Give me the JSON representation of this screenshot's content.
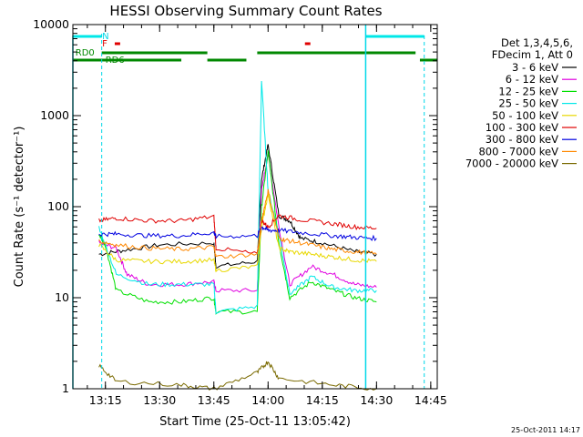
{
  "chart_data": {
    "type": "line",
    "title": "HESSI Observing Summary Count Rates",
    "xlabel": "Start Time (25-Oct-11 13:05:42)",
    "ylabel": "Count Rate (s⁻¹ detector⁻¹)",
    "yscale": "log",
    "ylim": [
      1,
      10000
    ],
    "xlim_minutes": [
      13.1,
      14.78
    ],
    "x_tick_labels": [
      "13:15",
      "13:30",
      "13:45",
      "14:00",
      "14:15",
      "14:30",
      "14:45"
    ],
    "y_tick_labels": [
      "1",
      "10",
      "100",
      "1000",
      "10000"
    ],
    "legend_header": [
      "Det 1,3,4,5,6,",
      "FDecim 1, Att 0"
    ],
    "legend_placement": "right",
    "timestamp": "25-Oct-2011 14:17",
    "annotations": [
      {
        "text": "N",
        "color": "#00d8e8"
      },
      {
        "text": "F",
        "color": "#e00000"
      },
      {
        "text": "RD0",
        "color": "#008800"
      },
      {
        "text": "RD6",
        "color": "#008800"
      }
    ],
    "series": [
      {
        "name": "3 - 6 keV",
        "color": "#000000",
        "points": [
          [
            13.22,
            30
          ],
          [
            13.33,
            33
          ],
          [
            13.5,
            38
          ],
          [
            13.75,
            40
          ],
          [
            13.76,
            22
          ],
          [
            13.95,
            25
          ],
          [
            13.97,
            200
          ],
          [
            14.0,
            480
          ],
          [
            14.05,
            80
          ],
          [
            14.1,
            70
          ],
          [
            14.15,
            45
          ],
          [
            14.25,
            40
          ],
          [
            14.4,
            32
          ],
          [
            14.5,
            30
          ]
        ]
      },
      {
        "name": "6 - 12 keV",
        "color": "#e000e0",
        "points": [
          [
            13.22,
            40
          ],
          [
            13.3,
            35
          ],
          [
            13.35,
            18
          ],
          [
            13.45,
            14
          ],
          [
            13.6,
            14
          ],
          [
            13.75,
            15
          ],
          [
            13.76,
            12
          ],
          [
            13.95,
            12
          ],
          [
            13.97,
            150
          ],
          [
            14.0,
            380
          ],
          [
            14.05,
            60
          ],
          [
            14.1,
            14
          ],
          [
            14.2,
            22
          ],
          [
            14.3,
            18
          ],
          [
            14.4,
            14
          ],
          [
            14.5,
            13
          ]
        ]
      },
      {
        "name": "12 - 25 keV",
        "color": "#00e000",
        "points": [
          [
            13.22,
            50
          ],
          [
            13.25,
            38
          ],
          [
            13.3,
            12
          ],
          [
            13.45,
            9
          ],
          [
            13.6,
            9
          ],
          [
            13.75,
            10
          ],
          [
            13.76,
            7
          ],
          [
            13.95,
            7
          ],
          [
            13.97,
            100
          ],
          [
            14.0,
            400
          ],
          [
            14.05,
            40
          ],
          [
            14.1,
            10
          ],
          [
            14.2,
            15
          ],
          [
            14.3,
            12
          ],
          [
            14.4,
            10
          ],
          [
            14.5,
            9
          ]
        ]
      },
      {
        "name": "25 - 50 keV",
        "color": "#00e8e8",
        "points": [
          [
            13.22,
            60
          ],
          [
            13.3,
            18
          ],
          [
            13.45,
            14
          ],
          [
            13.6,
            14
          ],
          [
            13.75,
            14
          ],
          [
            13.76,
            7
          ],
          [
            13.95,
            8
          ],
          [
            13.97,
            2400
          ],
          [
            14.0,
            150
          ],
          [
            14.05,
            50
          ],
          [
            14.1,
            11
          ],
          [
            14.2,
            17
          ],
          [
            14.3,
            13
          ],
          [
            14.4,
            12
          ],
          [
            14.5,
            12
          ]
        ]
      },
      {
        "name": "50 - 100 keV",
        "color": "#e8d800",
        "points": [
          [
            13.22,
            38
          ],
          [
            13.3,
            26
          ],
          [
            13.45,
            25
          ],
          [
            13.6,
            25
          ],
          [
            13.75,
            26
          ],
          [
            13.76,
            20
          ],
          [
            13.95,
            22
          ],
          [
            13.97,
            60
          ],
          [
            14.0,
            140
          ],
          [
            14.05,
            35
          ],
          [
            14.1,
            32
          ],
          [
            14.2,
            30
          ],
          [
            14.3,
            28
          ],
          [
            14.4,
            26
          ],
          [
            14.5,
            25
          ]
        ]
      },
      {
        "name": "100 - 300 keV",
        "color": "#e00000",
        "points": [
          [
            13.22,
            70
          ],
          [
            13.3,
            75
          ],
          [
            13.45,
            70
          ],
          [
            13.6,
            70
          ],
          [
            13.75,
            78
          ],
          [
            13.76,
            35
          ],
          [
            13.95,
            30
          ],
          [
            13.97,
            70
          ],
          [
            14.0,
            60
          ],
          [
            14.05,
            80
          ],
          [
            14.15,
            72
          ],
          [
            14.3,
            65
          ],
          [
            14.4,
            60
          ],
          [
            14.5,
            58
          ]
        ]
      },
      {
        "name": "300 - 800 keV",
        "color": "#0000e0",
        "points": [
          [
            13.22,
            50
          ],
          [
            13.3,
            50
          ],
          [
            13.45,
            48
          ],
          [
            13.6,
            48
          ],
          [
            13.75,
            52
          ],
          [
            13.76,
            47
          ],
          [
            13.95,
            48
          ],
          [
            13.97,
            60
          ],
          [
            14.0,
            55
          ],
          [
            14.05,
            55
          ],
          [
            14.15,
            52
          ],
          [
            14.3,
            48
          ],
          [
            14.4,
            46
          ],
          [
            14.5,
            45
          ]
        ]
      },
      {
        "name": "800 - 7000 keV",
        "color": "#ff8800",
        "points": [
          [
            13.22,
            42
          ],
          [
            13.3,
            38
          ],
          [
            13.45,
            35
          ],
          [
            13.6,
            34
          ],
          [
            13.75,
            36
          ],
          [
            13.76,
            28
          ],
          [
            13.95,
            30
          ],
          [
            13.97,
            70
          ],
          [
            14.0,
            150
          ],
          [
            14.05,
            45
          ],
          [
            14.1,
            42
          ],
          [
            14.2,
            38
          ],
          [
            14.3,
            34
          ],
          [
            14.4,
            32
          ],
          [
            14.5,
            30
          ]
        ]
      },
      {
        "name": "7000 - 20000 keV",
        "color": "#7a6a00",
        "points": [
          [
            13.22,
            1.8
          ],
          [
            13.3,
            1.2
          ],
          [
            13.6,
            1.1
          ],
          [
            13.75,
            1.0
          ],
          [
            13.95,
            1.5
          ],
          [
            14.0,
            2.0
          ],
          [
            14.05,
            1.3
          ],
          [
            14.3,
            1.1
          ],
          [
            14.5,
            1.0
          ]
        ]
      }
    ]
  }
}
